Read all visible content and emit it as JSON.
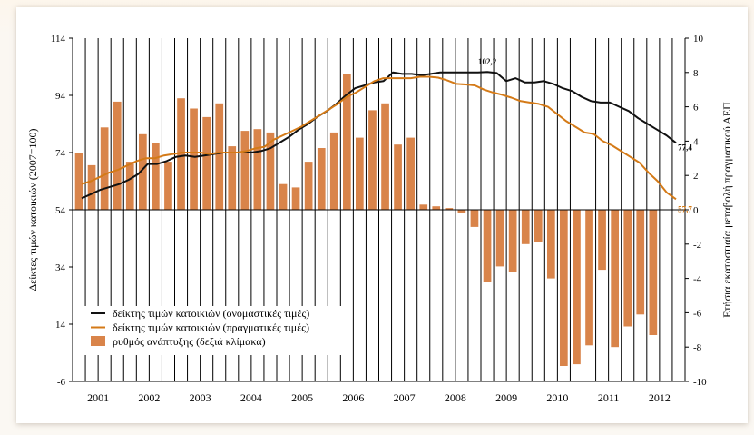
{
  "colors": {
    "nominal": "#111111",
    "real": "#d47a17",
    "bars": "#d9844a",
    "axis": "#000000",
    "grid": "#000000"
  },
  "chart_data": {
    "type": "bar+line",
    "title": "",
    "ylabel_left": "Δείκτες τιμών κατοικιών (2007=100)",
    "ylabel_right": "Ετήσια εκατοστιαία μεταβολή πραγματικού ΑΕΠ",
    "ylim_left": [
      -6,
      114
    ],
    "yticks_left": [
      114,
      94,
      74,
      54,
      34,
      14,
      -6
    ],
    "ylim_right": [
      -10,
      10
    ],
    "yticks_right": [
      10,
      8,
      6,
      4,
      2,
      0,
      -2,
      -4,
      -6,
      -8,
      -10
    ],
    "years": [
      "2001",
      "2002",
      "2003",
      "2004",
      "2005",
      "2006",
      "2007",
      "2008",
      "2009",
      "2010",
      "2011",
      "2012"
    ],
    "quarters_per_year": 4,
    "legend": {
      "position": "bottom-left",
      "entries": [
        "δείκτης τιμών κατοικιών (ονομαστικές τιμές)",
        "δείκτης τιμών κατοικιών (πραγματικές τιμές)",
        "ρυθμός ανάπτυξης (δεξιά κλίμακα)"
      ]
    },
    "annotations": [
      "102,2",
      "77,4",
      "57,7"
    ],
    "series": [
      {
        "name": "δείκτης τιμών κατοικιών (ονομαστικές τιμές)",
        "axis": "left",
        "type": "line",
        "values": [
          58,
          59.5,
          61,
          62,
          63,
          64.5,
          66.5,
          70,
          70,
          71,
          72.5,
          73,
          72.5,
          73,
          73.5,
          74,
          74,
          74,
          74,
          74.5,
          75.5,
          77.5,
          79.5,
          82,
          84,
          86.5,
          88.5,
          91,
          94,
          96.5,
          97.5,
          98.5,
          99,
          102,
          101.5,
          101.5,
          101,
          101.5,
          102,
          102,
          102,
          102,
          102,
          102.2,
          101.8,
          99,
          100,
          98.5,
          98.5,
          99,
          98,
          96.5,
          95.5,
          93.5,
          92,
          91.5,
          91.5,
          90,
          88.5,
          86,
          84,
          82,
          80,
          77.4
        ]
      },
      {
        "name": "δείκτης τιμών κατοικιών (πραγματικές τιμές)",
        "axis": "left",
        "type": "line",
        "values": [
          63,
          64,
          65.5,
          67,
          68,
          69.5,
          71,
          72,
          72,
          73,
          73.5,
          74,
          74,
          74,
          73.5,
          74,
          74,
          74,
          74.5,
          75.5,
          76,
          78.5,
          80,
          81.5,
          83,
          85,
          87,
          89,
          91,
          93.5,
          95,
          97,
          99,
          100,
          100,
          100,
          100,
          100.5,
          100.5,
          100.2,
          99.2,
          98,
          97.8,
          97.5,
          96,
          95,
          94.2,
          93.2,
          92,
          91.5,
          91,
          90,
          87.5,
          85,
          83,
          81,
          80.5,
          78,
          76.5,
          74.5,
          72.5,
          70.5,
          67,
          64,
          60,
          57.7
        ]
      },
      {
        "name": "ρυθμός ανάπτυξης (δεξιά κλίμακα)",
        "axis": "right",
        "type": "bar",
        "values": [
          3.3,
          2.6,
          4.8,
          6.3,
          2.8,
          4.4,
          3.9,
          2.8,
          6.5,
          5.9,
          5.4,
          6.2,
          3.7,
          4.6,
          4.7,
          4.5,
          1.5,
          1.3,
          2.8,
          3.6,
          4.5,
          7.9,
          4.2,
          5.8,
          6.2,
          3.8,
          4.2,
          0.3,
          0.2,
          0.1,
          -0.2,
          -1.0,
          -4.2,
          -3.3,
          -3.6,
          -2.0,
          -1.9,
          -4.0,
          -9.1,
          -9.0,
          -7.9,
          -3.5,
          -8.0,
          -6.8,
          -6.1,
          -7.3
        ]
      }
    ]
  }
}
